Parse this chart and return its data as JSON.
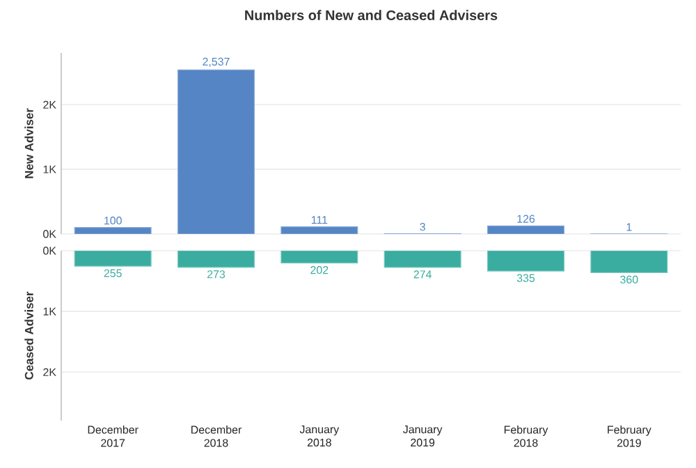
{
  "chart_data": [
    {
      "type": "bar",
      "title": "Numbers of New and Ceased Advisers",
      "ylabel": "New Adviser",
      "values": [
        100,
        2537,
        111,
        3,
        126,
        1
      ],
      "value_labels": [
        "100",
        "2,537",
        "111",
        "3",
        "126",
        "1"
      ],
      "color": "#5585c5",
      "ylim": [
        0,
        2800
      ],
      "yticks": [
        {
          "value": 0,
          "label": "0K"
        },
        {
          "value": 1000,
          "label": "1K"
        },
        {
          "value": 2000,
          "label": "2K"
        }
      ],
      "grid": "y",
      "tick_labels": "y"
    },
    {
      "type": "bar",
      "ylabel": "Ceased Adviser",
      "categories": [
        "December 2017",
        "December 2018",
        "January 2018",
        "January 2019",
        "February 2018",
        "February 2019"
      ],
      "values": [
        255,
        273,
        202,
        274,
        335,
        360
      ],
      "value_labels": [
        "255",
        "273",
        "202",
        "274",
        "335",
        "360"
      ],
      "color": "#3aada0",
      "ylim": [
        2800,
        0
      ],
      "yticks": [
        {
          "value": 0,
          "label": "0K"
        },
        {
          "value": 1000,
          "label": "1K"
        },
        {
          "value": 2000,
          "label": "2K"
        }
      ],
      "grid": "y"
    }
  ]
}
